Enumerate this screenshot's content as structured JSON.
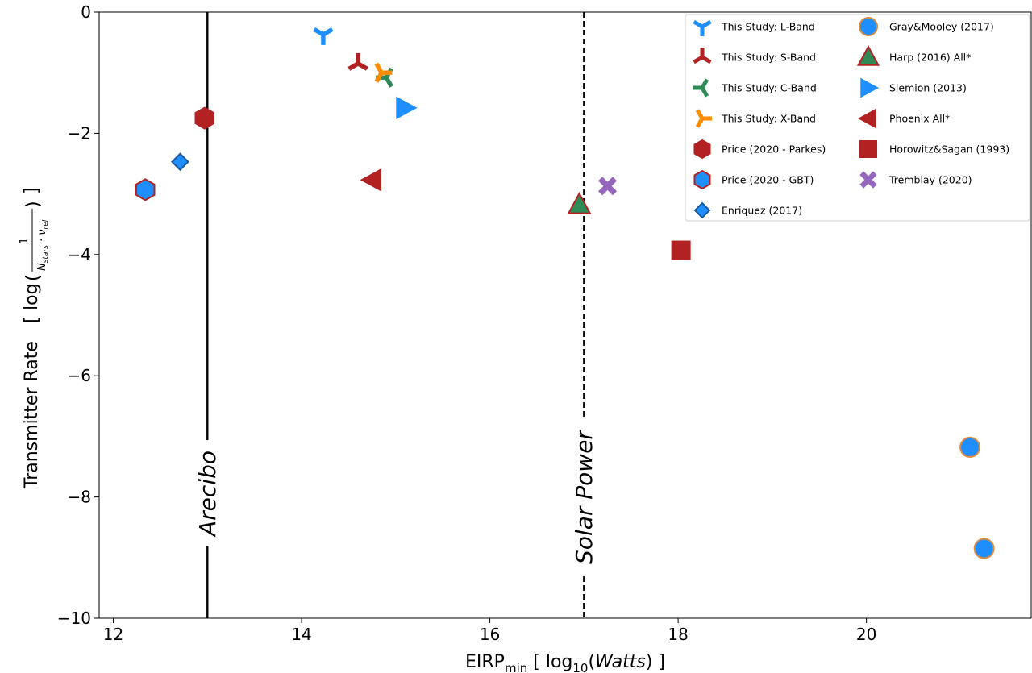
{
  "chart_data": {
    "type": "scatter",
    "xlabel": {
      "main": "EIRP",
      "sub": "min",
      "pre": "[ log",
      "presub": "10",
      "italic": "Watts",
      "post": ") ]",
      "open": "("
    },
    "ylabel": {
      "main": "Transmitter Rate",
      "frac_num": "1",
      "frac_den": "N",
      "den_sub": "stars",
      "nu": "ν",
      "nu_sub": "rel",
      "log": "log"
    },
    "xlim": [
      11.85,
      21.75
    ],
    "ylim": [
      -10,
      0
    ],
    "x_ticks": [
      12,
      14,
      16,
      18,
      20
    ],
    "x_tick_labels": [
      "12",
      "14",
      "16",
      "18",
      "20"
    ],
    "y_ticks": [
      0,
      -2,
      -4,
      -6,
      -8,
      -10
    ],
    "y_tick_labels": [
      "0",
      "−2",
      "−4",
      "−6",
      "−8",
      "−10"
    ],
    "grid": false,
    "legend_position": "top-right",
    "vlines": [
      {
        "x": 13.0,
        "label": "Arecibo",
        "style": "solid"
      },
      {
        "x": 17.0,
        "label": "Solar Power",
        "style": "dashed"
      }
    ],
    "series": [
      {
        "name": "This Study: L-Band",
        "marker": "tri_down",
        "color": "#1f8fff",
        "points": [
          [
            14.23,
            -0.37
          ]
        ]
      },
      {
        "name": "This Study: S-Band",
        "marker": "tri_up",
        "color": "#b22222",
        "points": [
          [
            14.6,
            -0.85
          ]
        ]
      },
      {
        "name": "This Study: C-Band",
        "marker": "tri_left",
        "color": "#2e8b57",
        "points": [
          [
            14.9,
            -1.08
          ]
        ]
      },
      {
        "name": "This Study: X-Band",
        "marker": "tri_right",
        "color": "#ff8c00",
        "points": [
          [
            14.85,
            -1.0
          ]
        ]
      },
      {
        "name": "Price (2020 - Parkes)",
        "marker": "hexagon",
        "color": "#b22222",
        "edge": "#b22222",
        "points": [
          [
            12.97,
            -1.75
          ]
        ]
      },
      {
        "name": "Price (2020 - GBT)",
        "marker": "hexagon",
        "color": "#1f8fff",
        "edge": "#b22222",
        "points": [
          [
            12.34,
            -2.93
          ]
        ]
      },
      {
        "name": "Enriquez (2017)",
        "marker": "diamond",
        "color": "#1f8fff",
        "edge": "#1a5a9e",
        "points": [
          [
            12.71,
            -2.47
          ]
        ]
      },
      {
        "name": "Gray&Mooley (2017)",
        "marker": "circle",
        "color": "#1f8fff",
        "edge": "#e08a3c",
        "points": [
          [
            21.1,
            -7.18
          ],
          [
            21.25,
            -8.85
          ]
        ]
      },
      {
        "name": "Harp (2016) All*",
        "marker": "triangle_up",
        "color": "#2e8b57",
        "edge": "#b22222",
        "points": [
          [
            16.95,
            -3.18
          ]
        ]
      },
      {
        "name": "Siemion (2013)",
        "marker": "triangle_right",
        "color": "#1f8fff",
        "points": [
          [
            15.1,
            -1.58
          ]
        ]
      },
      {
        "name": "Phoenix All*",
        "marker": "triangle_left",
        "color": "#b22222",
        "points": [
          [
            14.75,
            -2.77
          ]
        ]
      },
      {
        "name": "Horowitz&Sagan (1993)",
        "marker": "square",
        "color": "#b22222",
        "points": [
          [
            18.03,
            -3.93
          ]
        ]
      },
      {
        "name": "Tremblay (2020)",
        "marker": "x",
        "color": "#9467bd",
        "points": [
          [
            17.25,
            -2.87
          ]
        ]
      }
    ]
  }
}
